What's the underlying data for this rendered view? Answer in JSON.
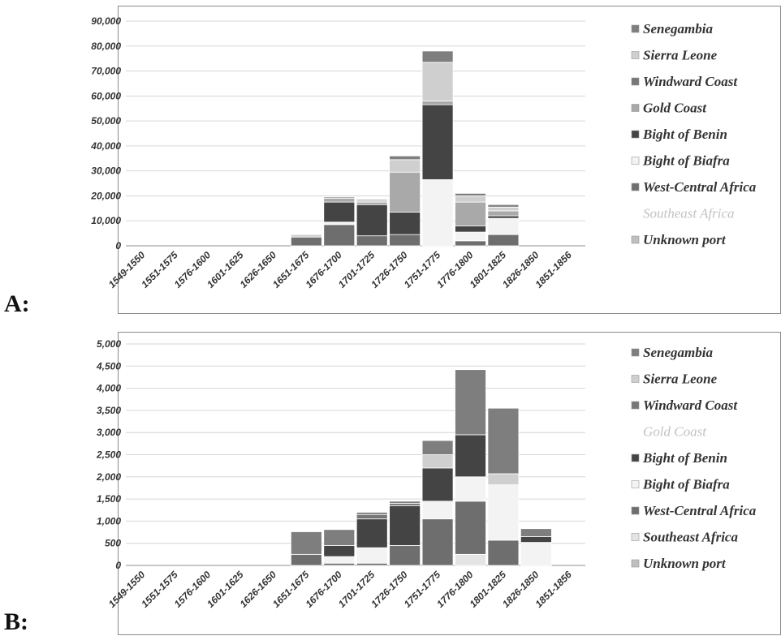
{
  "labels": {
    "panel_a": "A:",
    "panel_b": "B:"
  },
  "colors": {
    "Senegambia": "#7e7e7e",
    "Sierra Leone": "#cfcfcf",
    "Windward Coast": "#777777",
    "Gold Coast": "#a9a9a9",
    "Bight of Benin": "#444444",
    "Bight of Biafra": "#f3f3f3",
    "West-Central Africa": "#6e6e6e",
    "Southeast Africa": "#e4e4e4",
    "Unknown port": "#bfbfbf"
  },
  "chart_data": [
    {
      "type": "bar",
      "stacked": true,
      "title": "",
      "xlabel": "",
      "ylabel": "",
      "ylim": [
        0,
        90000
      ],
      "yticks": [
        "0",
        "10,000",
        "20,000",
        "30,000",
        "40,000",
        "50,000",
        "60,000",
        "70,000",
        "80,000",
        "90,000"
      ],
      "grid": true,
      "legend_position": "right",
      "categories": [
        "1549-1550",
        "1551-1575",
        "1576-1600",
        "1601-1625",
        "1626-1650",
        "1651-1675",
        "1676-1700",
        "1701-1725",
        "1726-1750",
        "1751-1775",
        "1776-1800",
        "1801-1825",
        "1826-1850",
        "1851-1856"
      ],
      "series": [
        {
          "name": "West-Central Africa",
          "values": [
            0,
            0,
            0,
            0,
            0,
            3500,
            8500,
            4000,
            4500,
            0,
            2000,
            4500,
            0,
            0
          ]
        },
        {
          "name": "Bight of Biafra",
          "values": [
            0,
            0,
            0,
            0,
            0,
            0,
            1000,
            0,
            0,
            26500,
            3500,
            6500,
            0,
            0
          ]
        },
        {
          "name": "Bight of Benin",
          "values": [
            0,
            0,
            0,
            0,
            0,
            0,
            8000,
            12500,
            9000,
            30000,
            2500,
            1000,
            0,
            0
          ]
        },
        {
          "name": "Gold Coast",
          "values": [
            0,
            0,
            0,
            0,
            0,
            0,
            1500,
            1000,
            16000,
            1500,
            9500,
            2000,
            0,
            0
          ]
        },
        {
          "name": "Sierra Leone",
          "values": [
            0,
            0,
            0,
            0,
            0,
            1000,
            0,
            500,
            5000,
            15500,
            2500,
            1500,
            0,
            0
          ]
        },
        {
          "name": "Senegambia",
          "values": [
            0,
            0,
            0,
            0,
            0,
            0,
            500,
            500,
            1500,
            4500,
            1000,
            1000,
            0,
            0
          ]
        }
      ],
      "legend": [
        {
          "name": "Senegambia",
          "faded": false
        },
        {
          "name": "Sierra Leone",
          "faded": false
        },
        {
          "name": "Windward Coast",
          "faded": false
        },
        {
          "name": "Gold Coast",
          "faded": false
        },
        {
          "name": "Bight of Benin",
          "faded": false
        },
        {
          "name": "Bight of Biafra",
          "faded": false
        },
        {
          "name": "West-Central Africa",
          "faded": false
        },
        {
          "name": "Southeast Africa",
          "faded": true
        },
        {
          "name": "Unknown port",
          "faded": false
        }
      ]
    },
    {
      "type": "bar",
      "stacked": true,
      "title": "",
      "xlabel": "",
      "ylabel": "",
      "ylim": [
        0,
        5000
      ],
      "yticks": [
        "0",
        "500",
        "1,000",
        "1,500",
        "2,000",
        "2,500",
        "3,000",
        "3,500",
        "4,000",
        "4,500",
        "5,000"
      ],
      "grid": true,
      "legend_position": "right",
      "categories": [
        "1549-1550",
        "1551-1575",
        "1576-1600",
        "1601-1625",
        "1626-1650",
        "1651-1675",
        "1676-1700",
        "1701-1725",
        "1726-1750",
        "1751-1775",
        "1776-1800",
        "1801-1825",
        "1826-1850",
        "1851-1856"
      ],
      "series": [
        {
          "name": "Southeast Africa",
          "values": [
            0,
            0,
            0,
            0,
            0,
            0,
            0,
            0,
            0,
            0,
            250,
            0,
            0,
            0
          ]
        },
        {
          "name": "West-Central Africa",
          "values": [
            0,
            0,
            0,
            0,
            0,
            250,
            50,
            50,
            450,
            1050,
            1200,
            570,
            0,
            0
          ]
        },
        {
          "name": "Bight of Biafra",
          "values": [
            0,
            0,
            0,
            0,
            0,
            0,
            150,
            350,
            0,
            400,
            550,
            1250,
            520,
            0
          ]
        },
        {
          "name": "Bight of Benin",
          "values": [
            0,
            0,
            0,
            0,
            0,
            0,
            250,
            650,
            900,
            750,
            950,
            0,
            130,
            0
          ]
        },
        {
          "name": "Windward Coast",
          "values": [
            0,
            0,
            0,
            0,
            0,
            0,
            0,
            100,
            50,
            0,
            0,
            0,
            0,
            0
          ]
        },
        {
          "name": "Sierra Leone",
          "values": [
            0,
            0,
            0,
            0,
            0,
            0,
            0,
            0,
            0,
            300,
            0,
            250,
            0,
            0
          ]
        },
        {
          "name": "Senegambia",
          "values": [
            0,
            0,
            0,
            0,
            0,
            510,
            360,
            50,
            50,
            320,
            1470,
            1480,
            180,
            0
          ]
        }
      ],
      "legend": [
        {
          "name": "Senegambia",
          "faded": false
        },
        {
          "name": "Sierra Leone",
          "faded": false
        },
        {
          "name": "Windward Coast",
          "faded": false
        },
        {
          "name": "Gold Coast",
          "faded": true
        },
        {
          "name": "Bight of Benin",
          "faded": false
        },
        {
          "name": "Bight of Biafra",
          "faded": false
        },
        {
          "name": "West-Central Africa",
          "faded": false
        },
        {
          "name": "Southeast Africa",
          "faded": false
        },
        {
          "name": "Unknown port",
          "faded": false
        }
      ]
    }
  ]
}
